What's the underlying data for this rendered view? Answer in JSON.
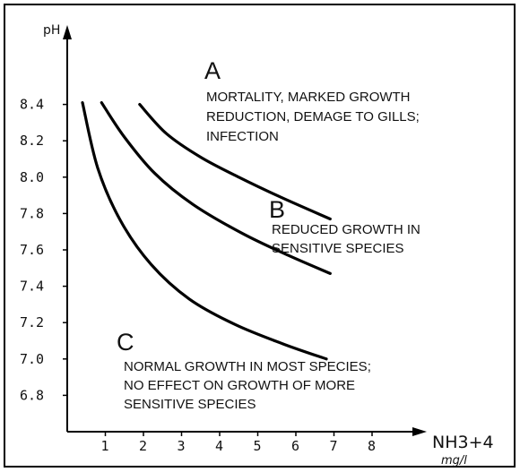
{
  "chart_data": {
    "type": "line",
    "title": "",
    "xlabel": "NH3+4",
    "xunit": "mg/l",
    "ylabel": "pH",
    "xlim": [
      0,
      9
    ],
    "ylim": [
      6.6,
      8.6
    ],
    "x_ticks": [
      "1",
      "2",
      "3",
      "4",
      "5",
      "6",
      "7",
      "8"
    ],
    "y_ticks": [
      "6.8",
      "7.0",
      "7.2",
      "7.4",
      "7.6",
      "7.8",
      "8.0",
      "8.2",
      "8.4"
    ],
    "grid": false,
    "series": [
      {
        "points": [
          [
            1.9,
            8.4
          ],
          [
            2.6,
            8.24
          ],
          [
            3.5,
            8.11
          ],
          [
            4.5,
            8.0
          ],
          [
            5.6,
            7.89
          ],
          [
            6.9,
            7.77
          ]
        ]
      },
      {
        "points": [
          [
            0.9,
            8.41
          ],
          [
            1.5,
            8.22
          ],
          [
            2.3,
            8.02
          ],
          [
            3.3,
            7.85
          ],
          [
            4.6,
            7.69
          ],
          [
            5.8,
            7.57
          ],
          [
            6.9,
            7.47
          ]
        ]
      },
      {
        "points": [
          [
            0.4,
            8.41
          ],
          [
            0.8,
            8.05
          ],
          [
            1.4,
            7.76
          ],
          [
            2.2,
            7.52
          ],
          [
            3.2,
            7.33
          ],
          [
            4.4,
            7.19
          ],
          [
            5.7,
            7.08
          ],
          [
            6.8,
            7.0
          ]
        ]
      }
    ],
    "zones": [
      {
        "letter": "A",
        "lines": [
          "MORTALITY, MARKED GROWTH",
          "REDUCTION, DEMAGE TO GILLS;",
          "INFECTION"
        ]
      },
      {
        "letter": "B",
        "lines": [
          "REDUCED GROWTH IN",
          "SENSITIVE SPECIES"
        ]
      },
      {
        "letter": "C",
        "lines": [
          "NORMAL GROWTH IN MOST SPECIES;",
          "NO EFFECT ON GROWTH OF MORE",
          "SENSITIVE SPECIES"
        ]
      }
    ]
  }
}
